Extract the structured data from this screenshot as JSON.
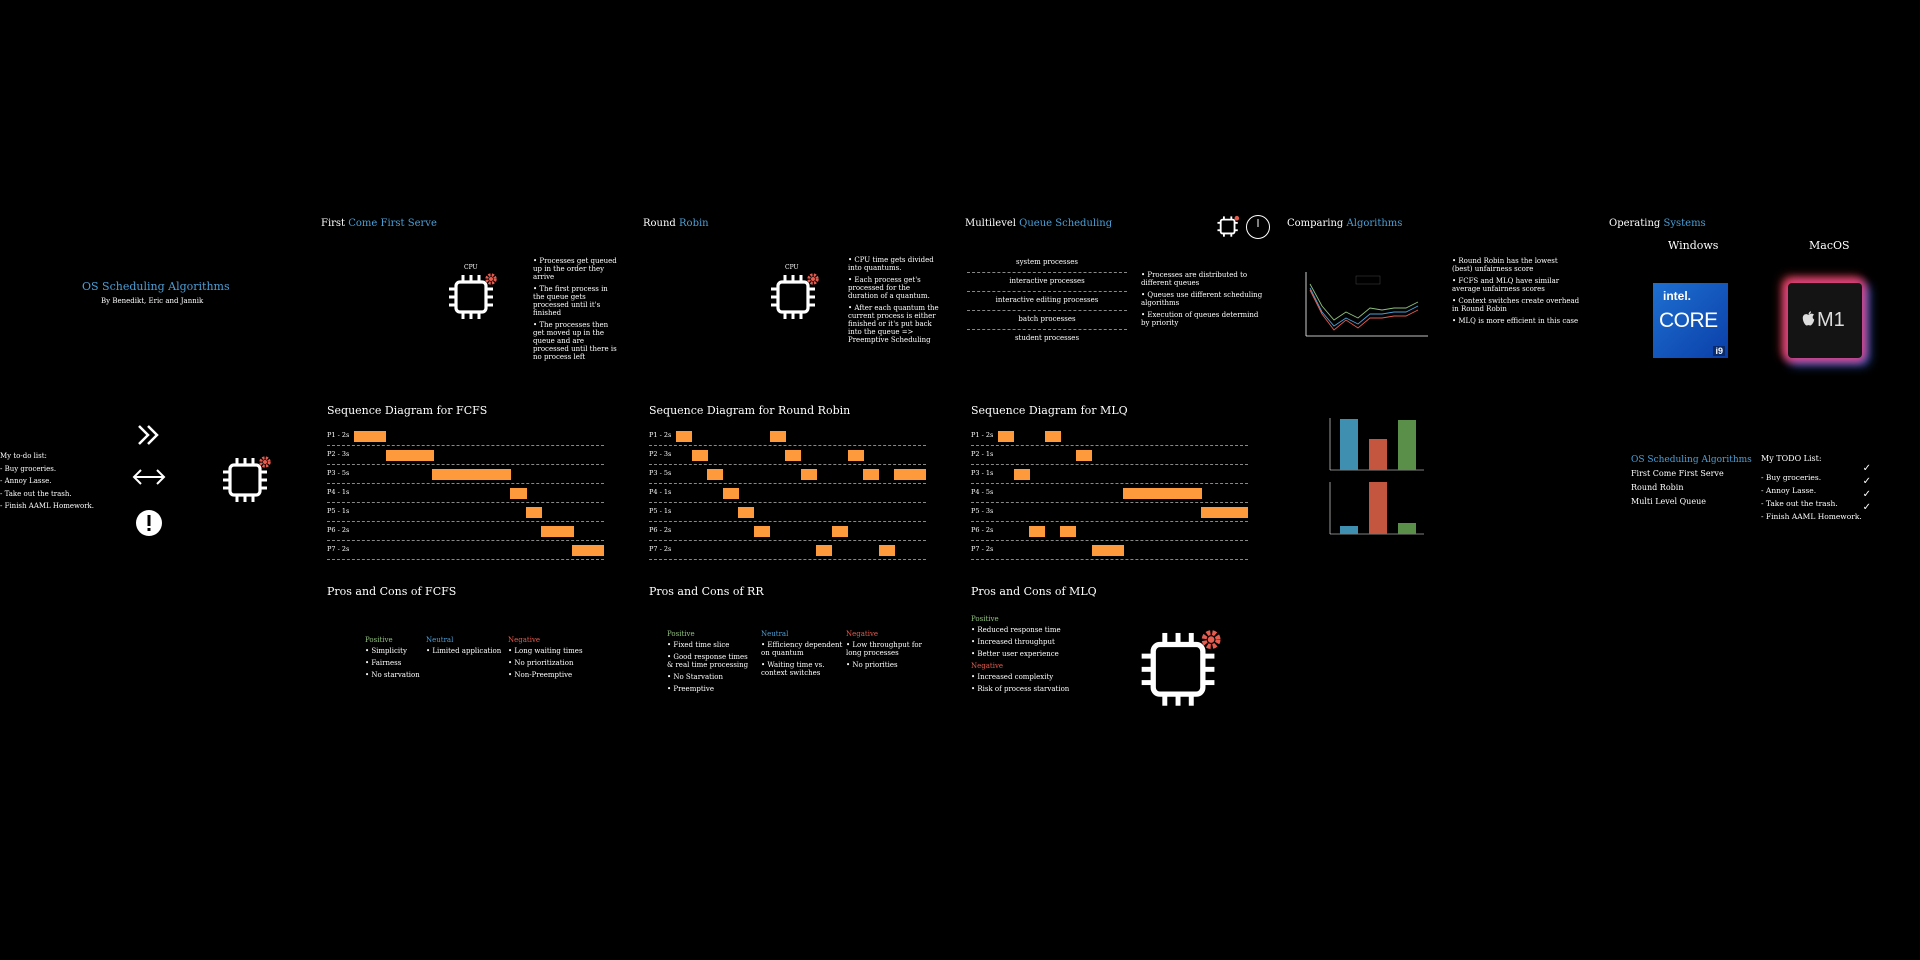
{
  "intro": {
    "title_plain": "OS Scheduling Algorithms",
    "authors": "By Benedikt, Eric and Jannik",
    "todo_lines": [
      "My to-do list:",
      "- Buy groceries.",
      "- Annoy Lasse.",
      "- Take out the trash.",
      "- Finish AAML Homework."
    ]
  },
  "fcfs": {
    "title_a": "First ",
    "title_b": "Come First Serve",
    "cpu_label": "CPU",
    "bullets": [
      "Processes get queued up in the order they arrive",
      "The first process in the queue gets processed until it's finished",
      "The processes then get moved up in the queue and are processed until there is no process left"
    ],
    "seq_title": "Sequence Diagram for FCFS",
    "rows": [
      "P1 - 2s",
      "P2 - 3s",
      "P3 - 5s",
      "P4 - 1s",
      "P5 - 1s",
      "P6 - 2s",
      "P7 - 2s"
    ],
    "pc_title": "Pros and Cons of FCFS",
    "positive_label": "Positive",
    "neutral_label": "Neutral",
    "negative_label": "Negative",
    "positive": [
      "Simplicity",
      "Fairness",
      "No starvation"
    ],
    "neutral": [
      "Limited application"
    ],
    "negative": [
      "Long waiting times",
      "No prioritization",
      "Non-Preemptive"
    ]
  },
  "rr": {
    "title_a": "Round ",
    "title_b": "Robin",
    "cpu_label": "CPU",
    "bullets": [
      "CPU time gets divided into quantums.",
      "Each process get's processed for the duration of a quantum.",
      "After each quantum the current process is either finished or it's put back into the queue => Preemptive Scheduling"
    ],
    "seq_title": "Sequence Diagram for Round Robin",
    "rows": [
      "P1 - 2s",
      "P2 - 3s",
      "P3 - 5s",
      "P4 - 1s",
      "P5 - 1s",
      "P6 - 2s",
      "P7 - 2s"
    ],
    "pc_title": "Pros and Cons of RR",
    "positive_label": "Positive",
    "neutral_label": "Neutral",
    "negative_label": "Negative",
    "positive": [
      "Fixed time slice",
      "Good response times & real time processing",
      "No Starvation",
      "Preemptive"
    ],
    "neutral": [
      "Efficiency dependent on quantum",
      "Waiting time vs. context switches"
    ],
    "negative": [
      "Low throughput for long processes",
      "No priorities"
    ]
  },
  "mlq": {
    "title_a": "Multilevel ",
    "title_b": "Queue Scheduling",
    "queues": [
      "system processes",
      "interactive processes",
      "interactive editing processes",
      "batch processes",
      "student processes"
    ],
    "bullets": [
      "Processes are distributed to different queues",
      "Queues use different scheduling algorithms",
      "Execution of queues determind by priority"
    ],
    "seq_title": "Sequence Diagram for MLQ",
    "rows": [
      "P1 - 2s",
      "P2 - 1s",
      "P3 - 1s",
      "P4 - 5s",
      "P5 - 3s",
      "P6 - 2s",
      "P7 - 2s"
    ],
    "pc_title": "Pros and Cons of MLQ",
    "positive_label": "Positive",
    "negative_label": "Negative",
    "positive": [
      "Reduced response time",
      "Increased throughput",
      "Better user experience"
    ],
    "negative": [
      "Increased complexity",
      "Risk of process starvation"
    ]
  },
  "compare": {
    "title_a": "Comparing ",
    "title_b": "Algorithms",
    "bullets": [
      "Round Robin has the lowest (best) unfairness score",
      "FCFS and MLQ have similar average unfairness scores",
      "Context switches create overhead in Round Robin",
      "MLQ is more efficient in this case"
    ]
  },
  "os": {
    "title_a": "Operating ",
    "title_b": "Systems",
    "windows": "Windows",
    "macos": "MacOS",
    "intel_brand": "intel.",
    "intel_core": "CORE",
    "intel_tier": "i9",
    "m1": "M1",
    "menu_title": "OS Scheduling Algorithms",
    "menu": [
      "First Come First Serve",
      "Round Robin",
      "Multi Level Queue"
    ],
    "todo_title": "My TODO List:",
    "todo": [
      "- Buy groceries.",
      "- Annoy Lasse.",
      "- Take out the trash.",
      "- Finish AAML Homework."
    ]
  },
  "colors": {
    "accent": "#4b9fd6",
    "bar": "#ff9a3c",
    "positive": "#8ec07c",
    "negative": "#e65c4f",
    "gear": "#e65c4f"
  }
}
